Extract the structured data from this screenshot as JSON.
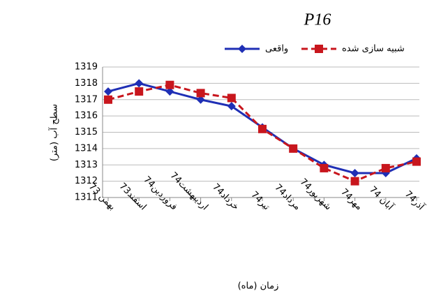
{
  "chart_data": {
    "type": "line",
    "title": "P16",
    "x_label": "زمان (ماه)",
    "y_label": "سطح آب (متر)",
    "categories": [
      "بهمن 73",
      "اسفند73",
      "فروردین74",
      "اردیبهشت74",
      "خرداد74",
      "تیر74",
      "مرداد74",
      "شهریور74",
      "مهر74",
      "آبان 74",
      "آذر74"
    ],
    "series": [
      {
        "name": "واقعی",
        "color": "#1f2fb5",
        "values": [
          1317.5,
          1318,
          1317.5,
          1317,
          1316.6,
          1315.3,
          1314,
          1313,
          1312.5,
          1312.5,
          1313.4
        ]
      },
      {
        "name": "شبیه سازی شده",
        "color": "#c8161d",
        "values": [
          1317,
          1317.5,
          1317.9,
          1317.4,
          1317.1,
          1315.2,
          1314,
          1312.8,
          1312,
          1312.8,
          1313.2
        ]
      }
    ],
    "ylim": [
      1311,
      1319
    ],
    "yticks": [
      1311,
      1312,
      1313,
      1314,
      1315,
      1316,
      1317,
      1318,
      1319
    ],
    "grid": true
  }
}
